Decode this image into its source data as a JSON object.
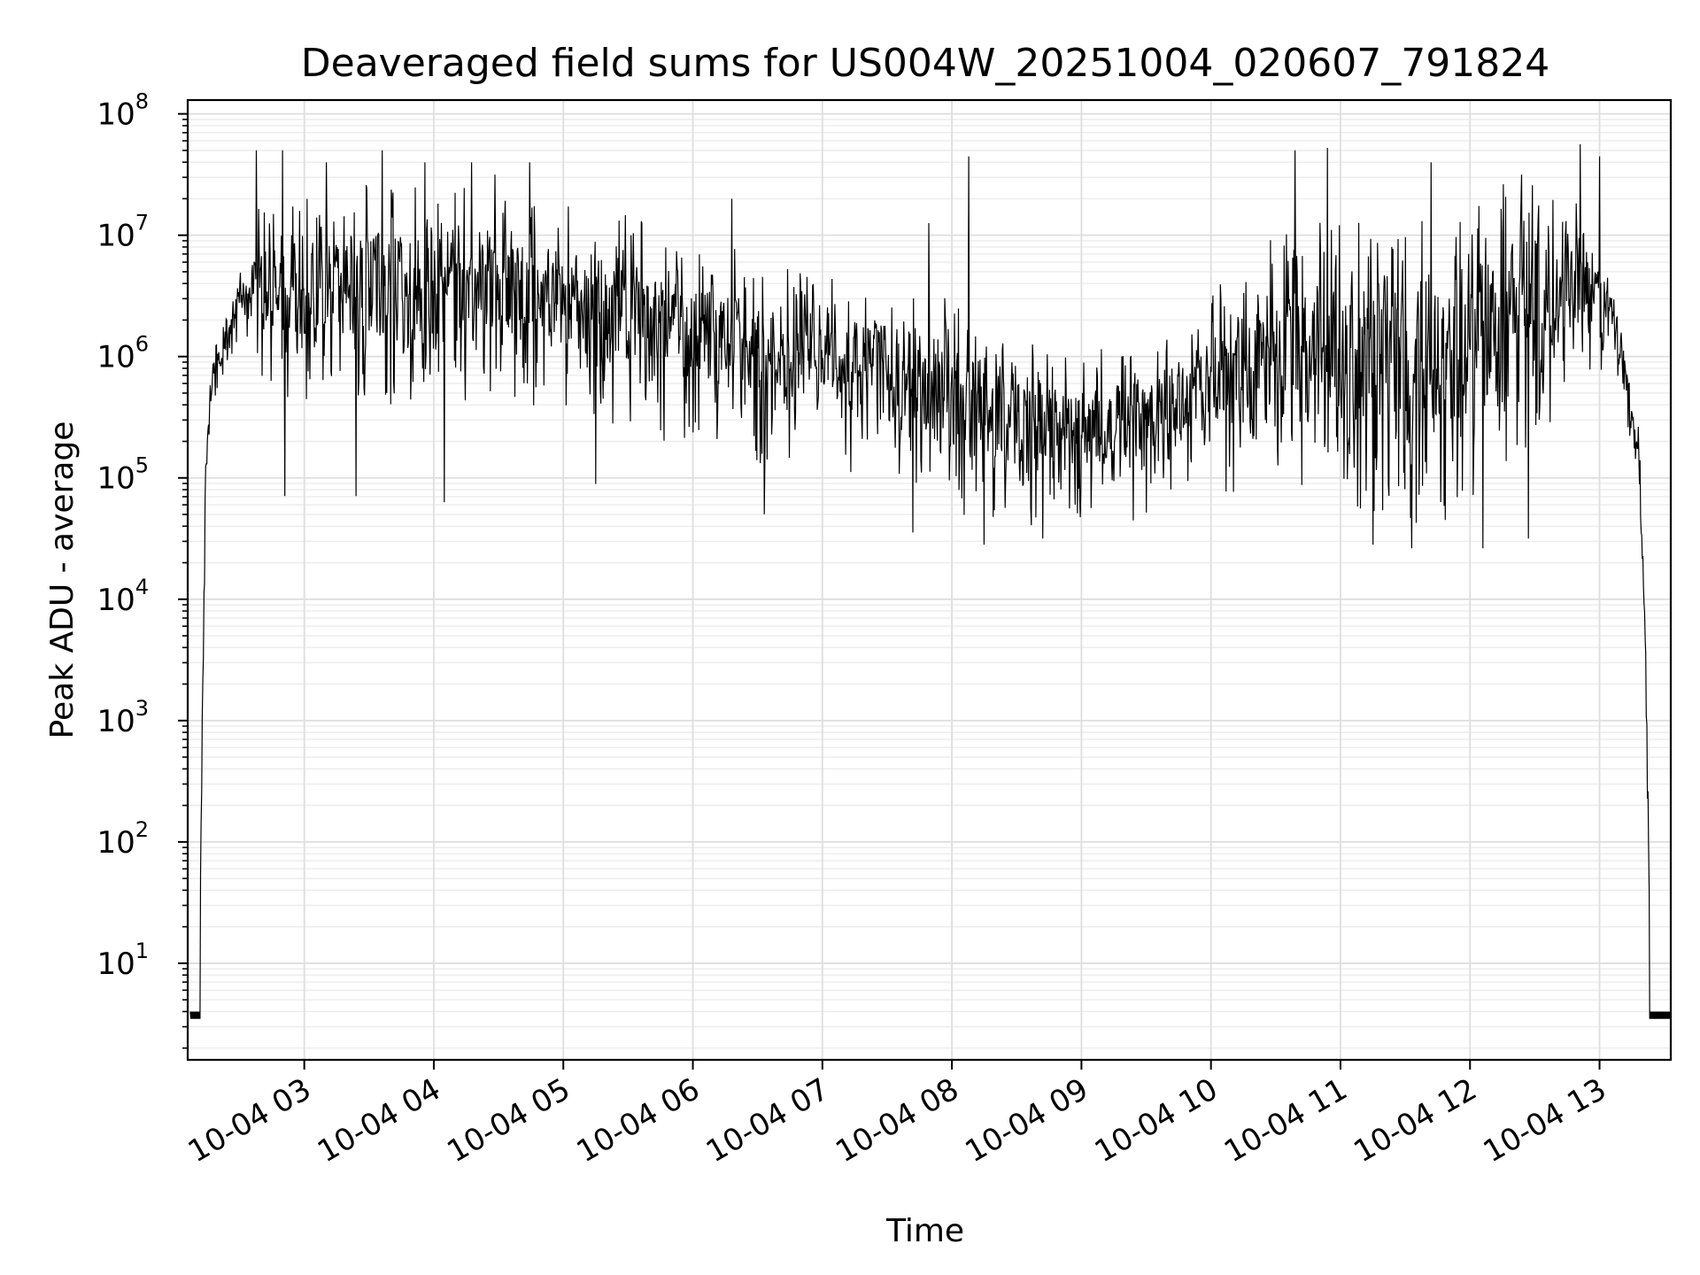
{
  "chart_data": {
    "type": "line",
    "title": "Deaveraged field sums for US004W_20251004_020607_791824",
    "xlabel": "Time",
    "ylabel": "Peak ADU - average",
    "yscale": "log",
    "ylim": [
      1.6,
      130000000
    ],
    "xlim_hours": [
      2.1,
      13.55
    ],
    "grid": true,
    "line_color": "#000000",
    "x_ticks": [
      {
        "hour": 3,
        "label": "10-04 03"
      },
      {
        "hour": 4,
        "label": "10-04 04"
      },
      {
        "hour": 5,
        "label": "10-04 05"
      },
      {
        "hour": 6,
        "label": "10-04 06"
      },
      {
        "hour": 7,
        "label": "10-04 07"
      },
      {
        "hour": 8,
        "label": "10-04 08"
      },
      {
        "hour": 9,
        "label": "10-04 09"
      },
      {
        "hour": 10,
        "label": "10-04 10"
      },
      {
        "hour": 11,
        "label": "10-04 11"
      },
      {
        "hour": 12,
        "label": "10-04 12"
      },
      {
        "hour": 13,
        "label": "10-04 13"
      }
    ],
    "y_ticks": [
      {
        "exp": 1,
        "base": "10",
        "sup": "1"
      },
      {
        "exp": 2,
        "base": "10",
        "sup": "2"
      },
      {
        "exp": 3,
        "base": "10",
        "sup": "3"
      },
      {
        "exp": 4,
        "base": "10",
        "sup": "4"
      },
      {
        "exp": 5,
        "base": "10",
        "sup": "5"
      },
      {
        "exp": 6,
        "base": "10",
        "sup": "6"
      },
      {
        "exp": 7,
        "base": "10",
        "sup": "7"
      },
      {
        "exp": 8,
        "base": "10",
        "sup": "8"
      }
    ],
    "series": [
      {
        "name": "Peak ADU - average",
        "note": "baseline band (hour, log10 low, log10 high) sampled across the series; plateau of ~4 ADU before 02:14 and after 13:27",
        "floor_value": 4,
        "envelope": [
          [
            2.12,
            0.6,
            0.68
          ],
          [
            2.19,
            0.6,
            0.68
          ],
          [
            2.22,
            3.5,
            4.2
          ],
          [
            2.25,
            5.0,
            5.6
          ],
          [
            2.3,
            5.6,
            6.0
          ],
          [
            2.4,
            5.9,
            6.3
          ],
          [
            2.5,
            6.1,
            6.8
          ],
          [
            2.7,
            5.7,
            7.2
          ],
          [
            3.0,
            5.5,
            7.2
          ],
          [
            3.5,
            5.6,
            7.3
          ],
          [
            4.0,
            5.5,
            7.2
          ],
          [
            4.5,
            5.7,
            7.3
          ],
          [
            5.0,
            5.5,
            7.1
          ],
          [
            5.5,
            5.3,
            7.0
          ],
          [
            6.0,
            5.3,
            6.8
          ],
          [
            6.5,
            5.1,
            6.7
          ],
          [
            7.0,
            5.1,
            6.6
          ],
          [
            7.5,
            4.9,
            6.5
          ],
          [
            8.0,
            4.7,
            6.3
          ],
          [
            8.5,
            4.6,
            6.0
          ],
          [
            9.0,
            4.6,
            5.9
          ],
          [
            9.5,
            4.7,
            6.0
          ],
          [
            10.0,
            4.9,
            6.4
          ],
          [
            10.5,
            4.8,
            6.8
          ],
          [
            11.0,
            4.7,
            7.0
          ],
          [
            11.5,
            4.5,
            6.9
          ],
          [
            12.0,
            4.6,
            7.1
          ],
          [
            12.5,
            5.3,
            7.3
          ],
          [
            12.9,
            5.7,
            7.1
          ],
          [
            13.1,
            5.9,
            6.6
          ],
          [
            13.3,
            5.0,
            5.5
          ],
          [
            13.35,
            3.5,
            4.0
          ],
          [
            13.4,
            0.6,
            0.68
          ],
          [
            13.55,
            0.6,
            0.68
          ]
        ],
        "spikes": [
          [
            2.63,
            7.7
          ],
          [
            2.83,
            7.7
          ],
          [
            3.17,
            7.6
          ],
          [
            3.6,
            7.7
          ],
          [
            3.93,
            7.6
          ],
          [
            4.29,
            7.6
          ],
          [
            4.47,
            7.5
          ],
          [
            4.74,
            7.6
          ],
          [
            6.3,
            7.3
          ],
          [
            7.82,
            7.1
          ],
          [
            8.13,
            7.65
          ],
          [
            10.65,
            7.7
          ],
          [
            10.9,
            7.72
          ],
          [
            11.7,
            7.6
          ],
          [
            12.4,
            7.5
          ],
          [
            12.85,
            7.75
          ],
          [
            13.0,
            7.65
          ]
        ],
        "dips": [
          [
            2.85,
            4.85
          ],
          [
            3.4,
            4.85
          ],
          [
            4.08,
            4.8
          ],
          [
            5.25,
            4.95
          ],
          [
            6.55,
            4.7
          ],
          [
            7.7,
            4.55
          ],
          [
            8.25,
            4.45
          ],
          [
            8.7,
            4.5
          ],
          [
            9.4,
            4.65
          ],
          [
            11.25,
            4.45
          ],
          [
            11.55,
            4.42
          ],
          [
            12.1,
            4.42
          ],
          [
            12.45,
            4.5
          ]
        ]
      }
    ]
  }
}
